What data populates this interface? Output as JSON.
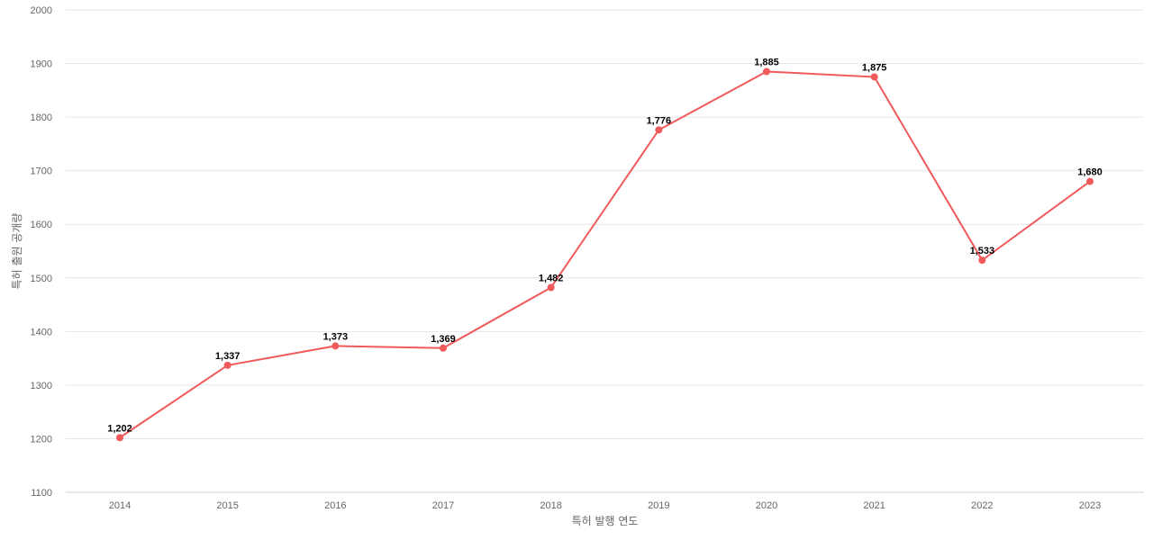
{
  "chart_data": {
    "type": "line",
    "title": "",
    "xlabel": "특허 발행 연도",
    "ylabel": "특허 출원 공개량",
    "categories": [
      "2014",
      "2015",
      "2016",
      "2017",
      "2018",
      "2019",
      "2020",
      "2021",
      "2022",
      "2023"
    ],
    "values": [
      1202,
      1337,
      1373,
      1369,
      1482,
      1776,
      1885,
      1875,
      1533,
      1680
    ],
    "data_labels": [
      "1,202",
      "1,337",
      "1,373",
      "1,369",
      "1,482",
      "1,776",
      "1,885",
      "1,875",
      "1,533",
      "1,680"
    ],
    "ylim": [
      1100,
      2000
    ],
    "yticks": [
      1100,
      1200,
      1300,
      1400,
      1500,
      1600,
      1700,
      1800,
      1900,
      2000
    ],
    "grid": true,
    "legend": "none",
    "colors": {
      "line": "#f05a5a",
      "marker": "#f05a5a"
    }
  }
}
